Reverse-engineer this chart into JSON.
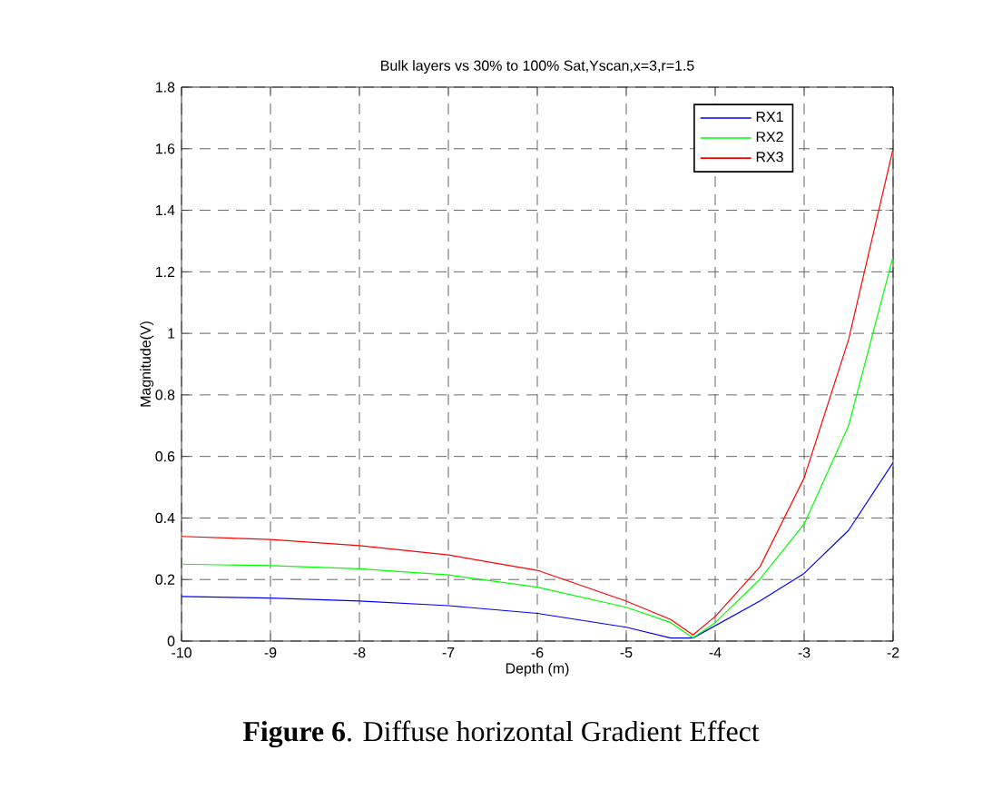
{
  "chart_data": {
    "type": "line",
    "title": "Bulk layers vs 30% to 100% Sat,Yscan,x=3,r=1.5",
    "xlabel": "Depth (m)",
    "ylabel": "Magnitude(V)",
    "annotations": [
      "**Figure 6**. Diffuse horizontal Gradient Effect"
    ],
    "x": [
      -10,
      -9,
      -8,
      -7,
      -6,
      -5,
      -4.5,
      -4.25,
      -4,
      -3.5,
      -3,
      -2.5,
      -2
    ],
    "series": [
      {
        "name": "RX1",
        "color": "#0000ff",
        "values": [
          0.145,
          0.14,
          0.13,
          0.115,
          0.09,
          0.045,
          0.01,
          0.01,
          0.05,
          0.13,
          0.22,
          0.36,
          0.58
        ]
      },
      {
        "name": "RX2",
        "color": "#00ff00",
        "values": [
          0.25,
          0.245,
          0.235,
          0.215,
          0.175,
          0.11,
          0.06,
          0.01,
          0.06,
          0.2,
          0.38,
          0.7,
          1.25
        ]
      },
      {
        "name": "RX3",
        "color": "#ff0000",
        "values": [
          0.34,
          0.33,
          0.31,
          0.28,
          0.23,
          0.13,
          0.07,
          0.02,
          0.08,
          0.24,
          0.53,
          0.98,
          1.6
        ]
      }
    ],
    "xlim": [
      -10,
      -2
    ],
    "xticks": [
      -10,
      -9,
      -8,
      -7,
      -6,
      -5,
      -4,
      -3,
      -2
    ],
    "ylim": [
      0,
      1.8
    ],
    "yticks": [
      0,
      0.2,
      0.4,
      0.6,
      0.8,
      1,
      1.2,
      1.4,
      1.6,
      1.8
    ],
    "grid": true,
    "legend": "top right",
    "marker": "none",
    "line_style": "solid"
  }
}
